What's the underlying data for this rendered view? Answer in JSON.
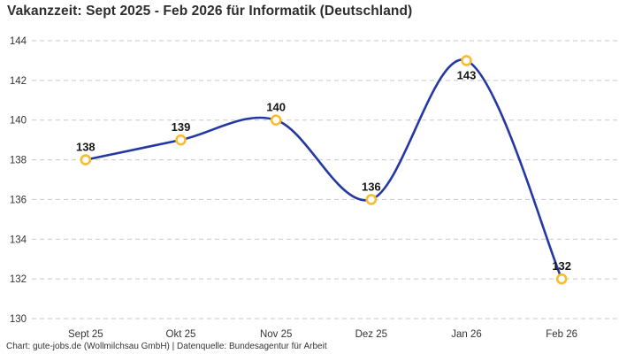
{
  "chart_data": {
    "type": "line",
    "title": "Vakanzzeit: Sept 2025 - Feb 2026 für Informatik (Deutschland)",
    "categories": [
      "Sept 25",
      "Okt 25",
      "Nov 25",
      "Dez 25",
      "Jan 26",
      "Feb 26"
    ],
    "values": [
      138,
      139,
      140,
      136,
      143,
      132
    ],
    "point_label_positions": [
      "above",
      "above",
      "above",
      "above",
      "below",
      "above"
    ],
    "xlabel": "",
    "ylabel": "",
    "ylim": [
      130,
      144
    ],
    "yticks": [
      144,
      142,
      140,
      138,
      136,
      134,
      132,
      130
    ],
    "grid": "horizontal-dashed",
    "legend": "none",
    "curve": "smooth",
    "colors": {
      "line": "#2438a3",
      "marker_ring": "#f8bc2e",
      "marker_fill": "#ffffff",
      "gridline": "#c9c9c9",
      "tick_text": "#333333",
      "point_label": "#141414",
      "title_text": "#2d2d2d"
    }
  },
  "footer": {
    "text": "Chart: gute-jobs.de (Wollmilchsau GmbH) | Datenquelle: Bundesagentur für Arbeit"
  }
}
